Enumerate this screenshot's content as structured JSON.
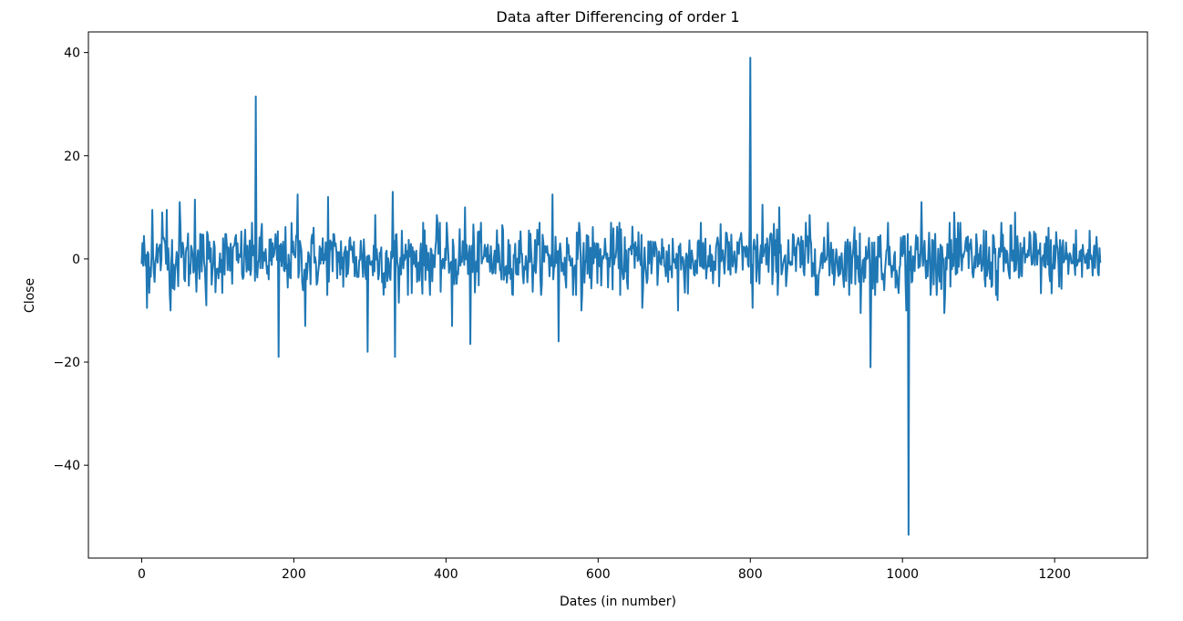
{
  "chart_data": {
    "type": "line",
    "title": "Data after Differencing of order 1",
    "xlabel": "Dates (in number)",
    "ylabel": "Close",
    "xlim": [
      -70,
      1322
    ],
    "ylim": [
      -58,
      44
    ],
    "xticks": [
      0,
      200,
      400,
      600,
      800,
      1000,
      1200
    ],
    "yticks": [
      -40,
      -20,
      0,
      20,
      40
    ],
    "xtick_labels": [
      "0",
      "200",
      "400",
      "600",
      "800",
      "1000",
      "1200"
    ],
    "ytick_labels": [
      "−40",
      "−20",
      "0",
      "20",
      "40"
    ],
    "grid": false,
    "color": "#1f77b4",
    "series": [
      {
        "x_start": 0,
        "x_end": 1260,
        "n_points": 1261,
        "baseline_std": 3.2,
        "spikes": [
          {
            "x": 7,
            "y": -9.5
          },
          {
            "x": 14,
            "y": 9.5
          },
          {
            "x": 27,
            "y": 9.0
          },
          {
            "x": 33,
            "y": 9.5
          },
          {
            "x": 38,
            "y": -10.0
          },
          {
            "x": 50,
            "y": 11.0
          },
          {
            "x": 70,
            "y": 11.5
          },
          {
            "x": 85,
            "y": -9.0
          },
          {
            "x": 150,
            "y": 31.5
          },
          {
            "x": 180,
            "y": -19.0
          },
          {
            "x": 205,
            "y": 12.5
          },
          {
            "x": 215,
            "y": -13.0
          },
          {
            "x": 245,
            "y": 12.0
          },
          {
            "x": 297,
            "y": -18.0
          },
          {
            "x": 307,
            "y": 8.5
          },
          {
            "x": 330,
            "y": 13.0
          },
          {
            "x": 333,
            "y": -19.0
          },
          {
            "x": 338,
            "y": -8.5
          },
          {
            "x": 388,
            "y": 8.5
          },
          {
            "x": 408,
            "y": -13.0
          },
          {
            "x": 425,
            "y": 10.0
          },
          {
            "x": 432,
            "y": -16.5
          },
          {
            "x": 540,
            "y": 12.5
          },
          {
            "x": 548,
            "y": -16.0
          },
          {
            "x": 578,
            "y": -10.0
          },
          {
            "x": 658,
            "y": -9.5
          },
          {
            "x": 705,
            "y": -10.0
          },
          {
            "x": 800,
            "y": 39.0
          },
          {
            "x": 803,
            "y": -9.5
          },
          {
            "x": 816,
            "y": 10.5
          },
          {
            "x": 838,
            "y": 10.0
          },
          {
            "x": 878,
            "y": 8.5
          },
          {
            "x": 945,
            "y": -10.5
          },
          {
            "x": 958,
            "y": -21.0
          },
          {
            "x": 1005,
            "y": -10.0
          },
          {
            "x": 1008,
            "y": -53.5
          },
          {
            "x": 1025,
            "y": 11.0
          },
          {
            "x": 1055,
            "y": -10.5
          },
          {
            "x": 1068,
            "y": 9.0
          },
          {
            "x": 1125,
            "y": -8.0
          },
          {
            "x": 1148,
            "y": 9.0
          }
        ]
      }
    ]
  }
}
